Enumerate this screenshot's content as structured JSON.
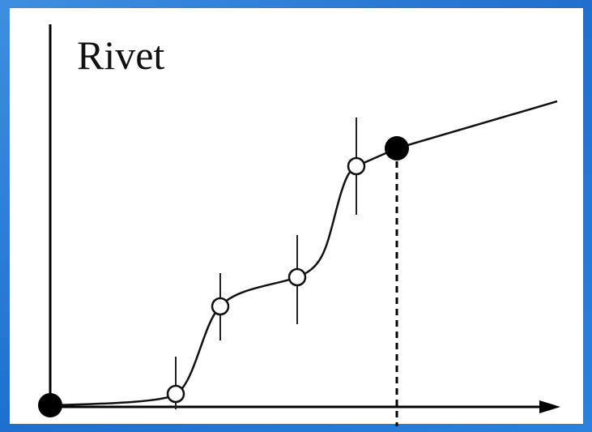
{
  "title": "Rivet"
}
